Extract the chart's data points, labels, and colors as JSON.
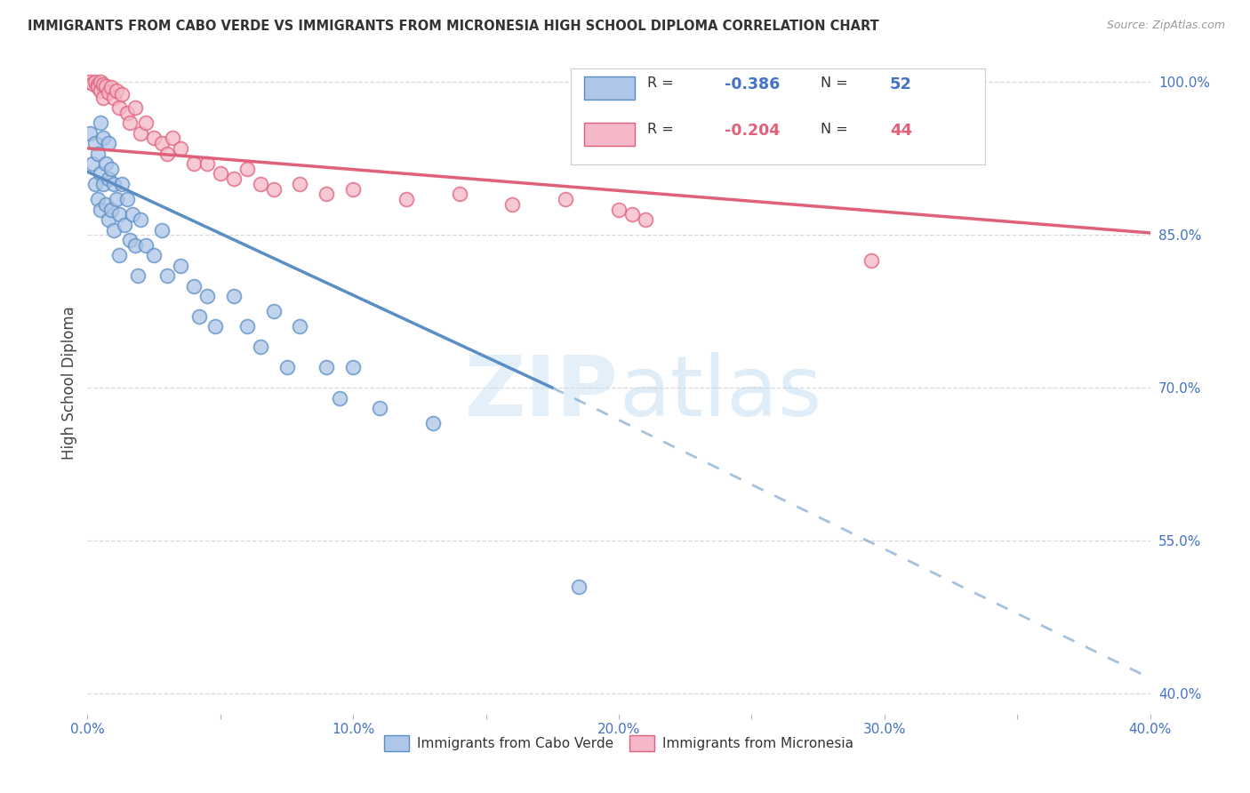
{
  "title": "IMMIGRANTS FROM CABO VERDE VS IMMIGRANTS FROM MICRONESIA HIGH SCHOOL DIPLOMA CORRELATION CHART",
  "source": "Source: ZipAtlas.com",
  "ylabel": "High School Diploma",
  "legend_label1": "Immigrants from Cabo Verde",
  "legend_label2": "Immigrants from Micronesia",
  "R1": -0.386,
  "N1": 52,
  "R2": -0.204,
  "N2": 44,
  "color1": "#aec6e8",
  "color1_edge": "#5b8ec4",
  "color2": "#f5b8c8",
  "color2_edge": "#e0607a",
  "xlim": [
    0.0,
    0.4
  ],
  "ylim": [
    0.38,
    1.03
  ],
  "ytick_vals": [
    1.0,
    0.85,
    0.7,
    0.55,
    0.4
  ],
  "ytick_labels": [
    "100.0%",
    "85.0%",
    "70.0%",
    "55.0%",
    "40.0%"
  ],
  "xtick_vals": [
    0.0,
    0.05,
    0.1,
    0.15,
    0.2,
    0.25,
    0.3,
    0.35,
    0.4
  ],
  "xtick_labels": [
    "0.0%",
    "",
    "10.0%",
    "",
    "20.0%",
    "",
    "30.0%",
    "",
    "40.0%"
  ],
  "watermark_text": "ZIPatlas",
  "background_color": "#ffffff",
  "grid_color": "#d0d0d0",
  "blue_line_solid": [
    [
      0.0,
      0.912
    ],
    [
      0.175,
      0.7
    ]
  ],
  "blue_line_dashed": [
    [
      0.175,
      0.7
    ],
    [
      0.4,
      0.415
    ]
  ],
  "pink_line_solid": [
    [
      0.0,
      0.935
    ],
    [
      0.4,
      0.852
    ]
  ],
  "cv_x": [
    0.001,
    0.002,
    0.003,
    0.003,
    0.004,
    0.004,
    0.005,
    0.005,
    0.005,
    0.006,
    0.006,
    0.007,
    0.007,
    0.008,
    0.008,
    0.008,
    0.009,
    0.009,
    0.01,
    0.01,
    0.011,
    0.012,
    0.012,
    0.013,
    0.014,
    0.015,
    0.016,
    0.017,
    0.018,
    0.019,
    0.02,
    0.022,
    0.025,
    0.028,
    0.03,
    0.035,
    0.04,
    0.042,
    0.045,
    0.048,
    0.055,
    0.06,
    0.065,
    0.07,
    0.075,
    0.08,
    0.09,
    0.095,
    0.1,
    0.11,
    0.13,
    0.185
  ],
  "cv_y": [
    0.95,
    0.92,
    0.94,
    0.9,
    0.93,
    0.885,
    0.96,
    0.91,
    0.875,
    0.945,
    0.9,
    0.92,
    0.88,
    0.94,
    0.905,
    0.865,
    0.915,
    0.875,
    0.9,
    0.855,
    0.885,
    0.87,
    0.83,
    0.9,
    0.86,
    0.885,
    0.845,
    0.87,
    0.84,
    0.81,
    0.865,
    0.84,
    0.83,
    0.855,
    0.81,
    0.82,
    0.8,
    0.77,
    0.79,
    0.76,
    0.79,
    0.76,
    0.74,
    0.775,
    0.72,
    0.76,
    0.72,
    0.69,
    0.72,
    0.68,
    0.665,
    0.505
  ],
  "mic_x": [
    0.001,
    0.002,
    0.003,
    0.004,
    0.004,
    0.005,
    0.005,
    0.006,
    0.006,
    0.007,
    0.008,
    0.009,
    0.01,
    0.011,
    0.012,
    0.013,
    0.015,
    0.016,
    0.018,
    0.02,
    0.022,
    0.025,
    0.028,
    0.03,
    0.032,
    0.035,
    0.04,
    0.045,
    0.05,
    0.055,
    0.06,
    0.065,
    0.07,
    0.08,
    0.09,
    0.1,
    0.12,
    0.14,
    0.16,
    0.18,
    0.2,
    0.205,
    0.21,
    0.295
  ],
  "mic_y": [
    1.0,
    0.999,
    1.0,
    0.998,
    0.995,
    1.0,
    0.992,
    0.998,
    0.985,
    0.996,
    0.99,
    0.995,
    0.985,
    0.992,
    0.975,
    0.988,
    0.97,
    0.96,
    0.975,
    0.95,
    0.96,
    0.945,
    0.94,
    0.93,
    0.945,
    0.935,
    0.92,
    0.92,
    0.91,
    0.905,
    0.915,
    0.9,
    0.895,
    0.9,
    0.89,
    0.895,
    0.885,
    0.89,
    0.88,
    0.885,
    0.875,
    0.87,
    0.865,
    0.825
  ]
}
